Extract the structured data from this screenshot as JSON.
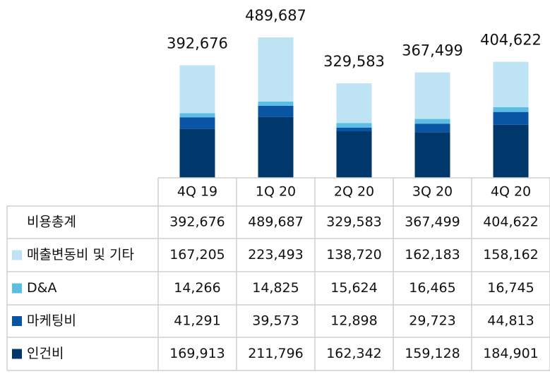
{
  "chart_data": {
    "type": "bar",
    "stacked": true,
    "categories": [
      "4Q 19",
      "1Q 20",
      "2Q 20",
      "3Q 20",
      "4Q 20"
    ],
    "total_name": "비용총계",
    "totals": [
      392676,
      489687,
      329583,
      367499,
      404622
    ],
    "total_labels": [
      "392,676",
      "489,687",
      "329,583",
      "367,499",
      "404,622"
    ],
    "series": [
      {
        "name": "매출변동비 및 기타",
        "color": "#bde3f5",
        "values": [
          167205,
          223493,
          138720,
          162183,
          158162
        ],
        "value_labels": [
          "167,205",
          "223,493",
          "138,720",
          "162,183",
          "158,162"
        ]
      },
      {
        "name": "D&A",
        "color": "#5bbce4",
        "values": [
          14266,
          14825,
          15624,
          16465,
          16745
        ],
        "value_labels": [
          "14,266",
          "14,825",
          "15,624",
          "16,465",
          "16,745"
        ]
      },
      {
        "name": "마케팅비",
        "color": "#0a55a3",
        "values": [
          41291,
          39573,
          12898,
          29723,
          44813
        ],
        "value_labels": [
          "41,291",
          "39,573",
          "12,898",
          "29,723",
          "44,813"
        ]
      },
      {
        "name": "인건비",
        "color": "#00386b",
        "values": [
          169913,
          211796,
          162342,
          159128,
          184901
        ],
        "value_labels": [
          "169,913",
          "211,796",
          "162,342",
          "159,128",
          "184,901"
        ]
      }
    ]
  }
}
